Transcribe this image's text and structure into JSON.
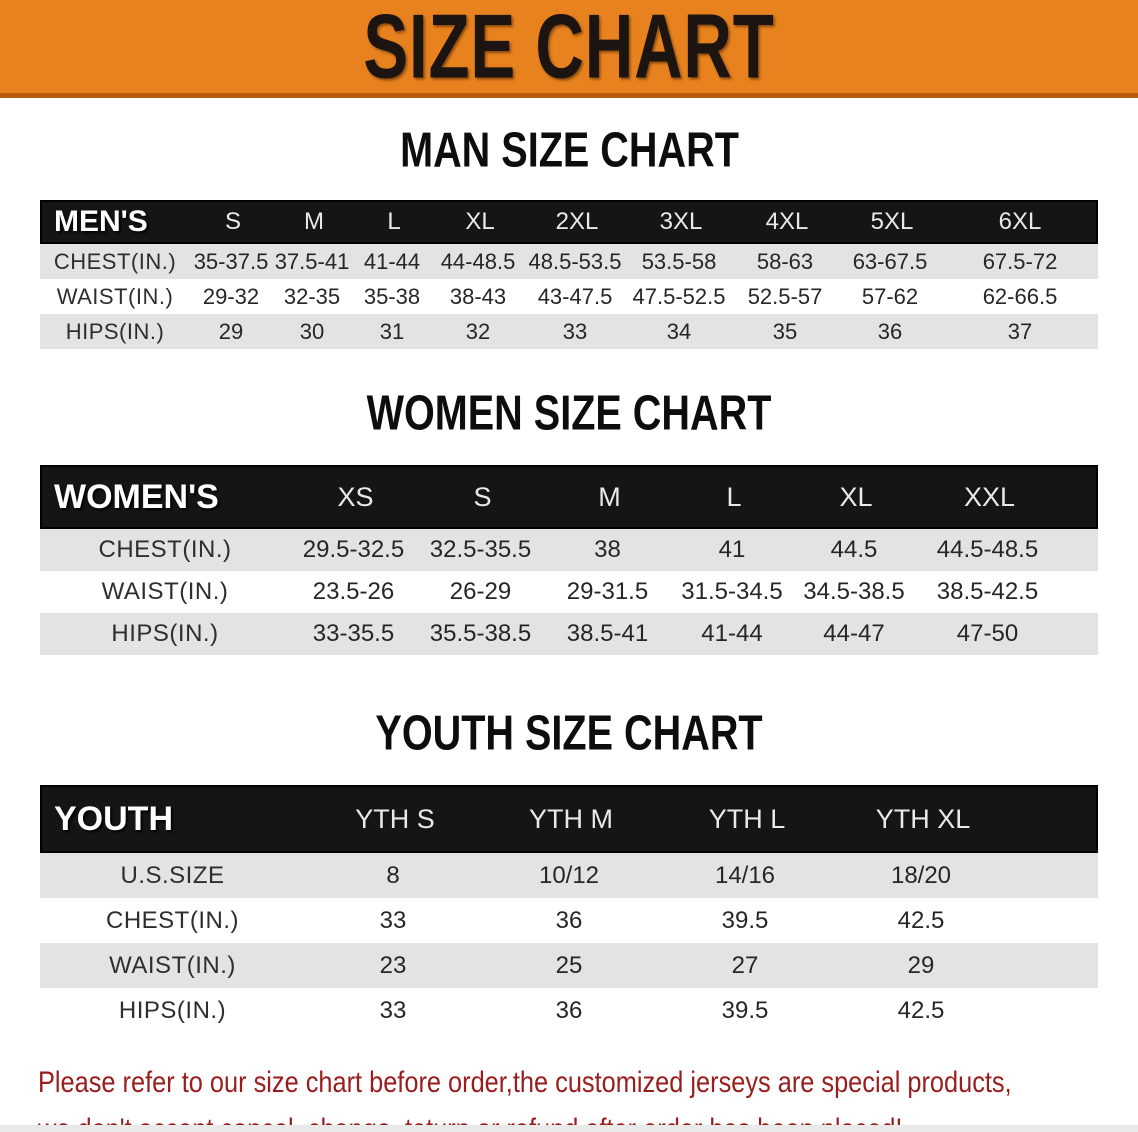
{
  "banner": {
    "title": "SIZE CHART",
    "bg_color": "#e8821e",
    "text_color": "#1b1410"
  },
  "tables": [
    {
      "id": "men",
      "title": "MAN SIZE CHART",
      "header_label": "MEN'S",
      "sizes": [
        "S",
        "M",
        "L",
        "XL",
        "2XL",
        "3XL",
        "4XL",
        "5XL",
        "6XL"
      ],
      "rows": [
        {
          "label": "CHEST(IN.)",
          "values": [
            "35-37.5",
            "37.5-41",
            "41-44",
            "44-48.5",
            "48.5-53.5",
            "53.5-58",
            "58-63",
            "63-67.5",
            "67.5-72"
          ]
        },
        {
          "label": "WAIST(IN.)",
          "values": [
            "29-32",
            "32-35",
            "35-38",
            "38-43",
            "43-47.5",
            "47.5-52.5",
            "52.5-57",
            "57-62",
            "62-66.5"
          ]
        },
        {
          "label": "HIPS(IN.)",
          "values": [
            "29",
            "30",
            "31",
            "32",
            "33",
            "34",
            "35",
            "36",
            "37"
          ]
        }
      ]
    },
    {
      "id": "women",
      "title": "WOMEN SIZE CHART",
      "header_label": "WOMEN'S",
      "sizes": [
        "XS",
        "S",
        "M",
        "L",
        "XL",
        "XXL"
      ],
      "rows": [
        {
          "label": "CHEST(IN.)",
          "values": [
            "29.5-32.5",
            "32.5-35.5",
            "38",
            "41",
            "44.5",
            "44.5-48.5"
          ]
        },
        {
          "label": "WAIST(IN.)",
          "values": [
            "23.5-26",
            "26-29",
            "29-31.5",
            "31.5-34.5",
            "34.5-38.5",
            "38.5-42.5"
          ]
        },
        {
          "label": "HIPS(IN.)",
          "values": [
            "33-35.5",
            "35.5-38.5",
            "38.5-41",
            "41-44",
            "44-47",
            "47-50"
          ]
        }
      ]
    },
    {
      "id": "youth",
      "title": "YOUTH SIZE CHART",
      "header_label": "YOUTH",
      "sizes": [
        "YTH S",
        "YTH M",
        "YTH L",
        "YTH XL"
      ],
      "rows": [
        {
          "label": "U.S.SIZE",
          "values": [
            "8",
            "10/12",
            "14/16",
            "18/20"
          ]
        },
        {
          "label": "CHEST(IN.)",
          "values": [
            "33",
            "36",
            "39.5",
            "42.5"
          ]
        },
        {
          "label": "WAIST(IN.)",
          "values": [
            "23",
            "25",
            "27",
            "29"
          ]
        },
        {
          "label": "HIPS(IN.)",
          "values": [
            "33",
            "36",
            "39.5",
            "42.5"
          ]
        }
      ]
    }
  ],
  "disclaimer": {
    "line1": "Please refer to our size chart before order,the customized jerseys are special products,",
    "line2": "we don't accept cancel, change, teturn or refund after order has been placed!",
    "color": "#9a1d1d"
  }
}
